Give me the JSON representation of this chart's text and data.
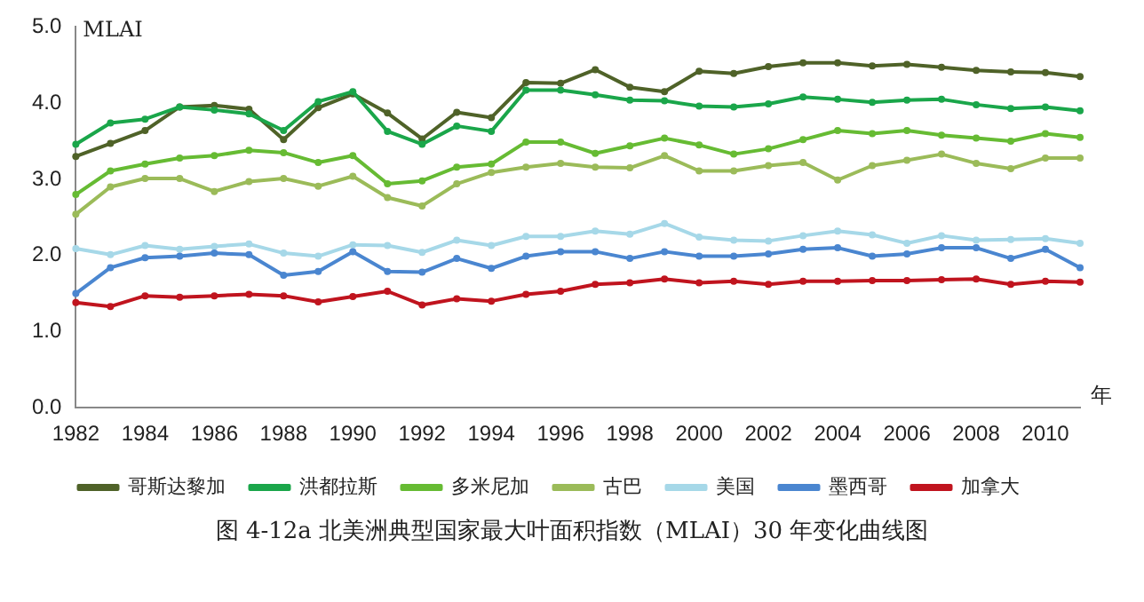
{
  "chart_data": {
    "type": "line",
    "title": "图 4-12a 北美洲典型国家最大叶面积指数（MLAI）30 年变化曲线图",
    "ylabel": "MLAI",
    "xlabel": "年",
    "categories": [
      "1982",
      null,
      "1984",
      null,
      "1986",
      null,
      "1988",
      null,
      "1990",
      null,
      "1992",
      null,
      "1994",
      null,
      "1996",
      null,
      "1998",
      null,
      "2000",
      null,
      "2002",
      null,
      "2004",
      null,
      "2006",
      null,
      "2008",
      null,
      "2010",
      null
    ],
    "ylim": [
      0,
      5
    ],
    "yticks": [
      {
        "value": 0,
        "label": "0.0"
      },
      {
        "value": 1,
        "label": "1.0"
      },
      {
        "value": 2,
        "label": "2.0"
      },
      {
        "value": 3,
        "label": "3.0"
      },
      {
        "value": 4,
        "label": "4.0"
      },
      {
        "value": 5,
        "label": "5.0"
      }
    ],
    "grid": false,
    "legend": "bottom",
    "marker": "circle",
    "line_style": "solid",
    "series": [
      {
        "name": "哥斯达黎加",
        "color": "#4f6228",
        "values": [
          3.3,
          3.47,
          3.64,
          3.95,
          3.97,
          3.92,
          3.52,
          3.94,
          4.12,
          3.87,
          3.53,
          3.88,
          3.81,
          4.27,
          4.26,
          4.44,
          4.21,
          4.15,
          4.42,
          4.39,
          4.48,
          4.53,
          4.53,
          4.49,
          4.51,
          4.47,
          4.43,
          4.41,
          4.4,
          4.35
        ]
      },
      {
        "name": "洪都拉斯",
        "color": "#1aa64a",
        "values": [
          3.46,
          3.74,
          3.79,
          3.95,
          3.91,
          3.86,
          3.64,
          4.02,
          4.15,
          3.63,
          3.46,
          3.7,
          3.63,
          4.17,
          4.17,
          4.11,
          4.04,
          4.03,
          3.96,
          3.95,
          3.99,
          4.08,
          4.05,
          4.01,
          4.04,
          4.05,
          3.98,
          3.93,
          3.95,
          3.9
        ]
      },
      {
        "name": "多米尼加",
        "color": "#66bb33",
        "values": [
          2.8,
          3.11,
          3.2,
          3.28,
          3.31,
          3.38,
          3.35,
          3.22,
          3.31,
          2.94,
          2.98,
          3.16,
          3.2,
          3.49,
          3.49,
          3.34,
          3.44,
          3.54,
          3.45,
          3.33,
          3.4,
          3.52,
          3.64,
          3.6,
          3.64,
          3.58,
          3.54,
          3.5,
          3.6,
          3.55
        ]
      },
      {
        "name": "古巴",
        "color": "#9bbb59",
        "values": [
          2.54,
          2.9,
          3.01,
          3.01,
          2.84,
          2.97,
          3.01,
          2.91,
          3.04,
          2.76,
          2.65,
          2.94,
          3.09,
          3.16,
          3.21,
          3.16,
          3.15,
          3.31,
          3.11,
          3.11,
          3.18,
          3.22,
          2.99,
          3.18,
          3.25,
          3.33,
          3.21,
          3.14,
          3.28,
          3.28
        ]
      },
      {
        "name": "美国",
        "color": "#a6d8e8",
        "values": [
          2.09,
          2.01,
          2.13,
          2.08,
          2.12,
          2.15,
          2.03,
          1.99,
          2.14,
          2.13,
          2.04,
          2.2,
          2.13,
          2.25,
          2.25,
          2.32,
          2.28,
          2.42,
          2.24,
          2.2,
          2.19,
          2.26,
          2.32,
          2.27,
          2.16,
          2.26,
          2.2,
          2.21,
          2.22,
          2.16
        ]
      },
      {
        "name": "墨西哥",
        "color": "#4a86d0",
        "values": [
          1.5,
          1.84,
          1.97,
          1.99,
          2.03,
          2.01,
          1.74,
          1.79,
          2.05,
          1.79,
          1.78,
          1.96,
          1.83,
          1.99,
          2.05,
          2.05,
          1.96,
          2.05,
          1.99,
          1.99,
          2.02,
          2.08,
          2.1,
          1.99,
          2.02,
          2.1,
          2.1,
          1.96,
          2.08,
          1.84
        ]
      },
      {
        "name": "加拿大",
        "color": "#c0141e",
        "values": [
          1.38,
          1.33,
          1.47,
          1.45,
          1.47,
          1.49,
          1.47,
          1.39,
          1.46,
          1.53,
          1.35,
          1.43,
          1.4,
          1.49,
          1.53,
          1.62,
          1.64,
          1.69,
          1.64,
          1.66,
          1.62,
          1.66,
          1.66,
          1.67,
          1.67,
          1.68,
          1.69,
          1.62,
          1.66,
          1.65
        ]
      }
    ]
  }
}
